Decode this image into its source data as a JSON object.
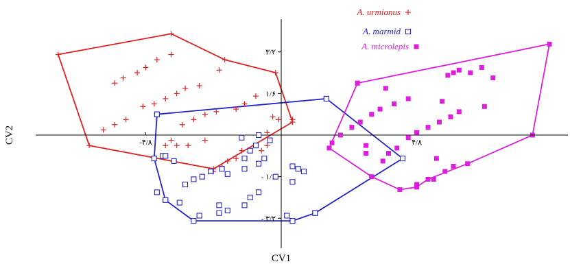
{
  "chart_data": {
    "type": "scatter",
    "xlabel": "CV1",
    "ylabel": "CV2",
    "grid": false,
    "legend_position": "top-center",
    "xlim": [
      -8.6,
      9.5
    ],
    "ylim": [
      -4.3,
      3.8
    ],
    "x_ticks": [
      {
        "value": -4.8,
        "label": "-۴/۸"
      },
      {
        "value": 4.8,
        "label": "۴/۸"
      }
    ],
    "y_ticks": [
      {
        "value": 3.2,
        "label": "۳/۲"
      },
      {
        "value": 1.6,
        "label": "۱/۶"
      },
      {
        "value": -1.6,
        "label": "- ۱/۶"
      },
      {
        "value": -3.2,
        "label": "- ۳/۲"
      }
    ],
    "series": [
      {
        "name": "A. urmianus",
        "marker": "plus",
        "color": "#e02020",
        "points": [
          [
            -3.9,
            3.1
          ],
          [
            -4.4,
            2.9
          ],
          [
            -4.8,
            2.6
          ],
          [
            -5.1,
            2.4
          ],
          [
            -5.6,
            2.2
          ],
          [
            -5.9,
            2.0
          ],
          [
            -2.2,
            2.5
          ],
          [
            -2.9,
            1.9
          ],
          [
            -3.4,
            1.8
          ],
          [
            -3.7,
            1.6
          ],
          [
            -4.1,
            1.4
          ],
          [
            -4.5,
            1.2
          ],
          [
            -4.9,
            1.1
          ],
          [
            -0.9,
            1.5
          ],
          [
            -1.3,
            1.2
          ],
          [
            -1.6,
            1.0
          ],
          [
            -2.3,
            0.9
          ],
          [
            -2.7,
            0.8
          ],
          [
            -3.1,
            0.6
          ],
          [
            -3.5,
            0.4
          ],
          [
            -5.5,
            0.6
          ],
          [
            -5.9,
            0.4
          ],
          [
            -6.3,
            0.2
          ],
          [
            -2.7,
            -0.2
          ],
          [
            -3.7,
            -0.4
          ],
          [
            -3.3,
            -0.4
          ],
          [
            -3.9,
            -0.2
          ],
          [
            -4.1,
            -0.4
          ],
          [
            -1.4,
            -0.6
          ],
          [
            -1.6,
            -0.9
          ],
          [
            -1.9,
            -1.0
          ],
          [
            -2.1,
            -1.2
          ],
          [
            -2.4,
            -1.4
          ],
          [
            -0.5,
            0.1
          ],
          [
            0.4,
            0.6
          ],
          [
            -0.5,
            -0.4
          ],
          [
            -0.7,
            -0.6
          ],
          [
            -0.1,
            0.6
          ],
          [
            -0.3,
            0.7
          ],
          [
            -4.1,
            -0.8
          ]
        ],
        "hull": [
          [
            -3.9,
            3.9
          ],
          [
            -7.9,
            3.1
          ],
          [
            -6.8,
            -0.4
          ],
          [
            -2.4,
            -1.3
          ],
          [
            0.4,
            0.5
          ],
          [
            -0.2,
            2.4
          ],
          [
            -2.0,
            2.9
          ]
        ]
      },
      {
        "name": "A. marmid",
        "marker": "square",
        "color": "#2323c8",
        "points": [
          [
            -4.2,
            -0.8
          ],
          [
            -3.8,
            -1.0
          ],
          [
            -3.4,
            -1.9
          ],
          [
            -3.1,
            -1.7
          ],
          [
            -2.8,
            -1.6
          ],
          [
            -2.5,
            -1.4
          ],
          [
            -2.1,
            -1.3
          ],
          [
            -1.9,
            -1.5
          ],
          [
            -1.3,
            -0.9
          ],
          [
            -1.1,
            -0.6
          ],
          [
            -0.9,
            -0.4
          ],
          [
            -0.4,
            -0.2
          ],
          [
            -0.6,
            -0.9
          ],
          [
            -0.8,
            -1.1
          ],
          [
            0.4,
            -1.2
          ],
          [
            0.6,
            -1.3
          ],
          [
            0.8,
            -1.4
          ],
          [
            -0.2,
            -1.6
          ],
          [
            0.4,
            -1.8
          ],
          [
            -0.8,
            -2.2
          ],
          [
            -1.1,
            -2.4
          ],
          [
            -1.3,
            -2.7
          ],
          [
            -1.9,
            -2.9
          ],
          [
            -2.2,
            -3.0
          ],
          [
            -2.9,
            -3.1
          ],
          [
            -3.6,
            -2.6
          ],
          [
            -2.2,
            -2.7
          ],
          [
            0.2,
            -3.1
          ],
          [
            0.4,
            -3.3
          ],
          [
            1.2,
            -3.0
          ],
          [
            -4.1,
            -2.5
          ],
          [
            -4.4,
            -2.2
          ],
          [
            -4.4,
            0.8
          ],
          [
            1.6,
            1.4
          ],
          [
            -0.8,
            0.0
          ],
          [
            -1.4,
            -0.1
          ],
          [
            -4.1,
            -0.8
          ],
          [
            -1.3,
            -1.3
          ]
        ],
        "hull": [
          [
            -4.4,
            0.8
          ],
          [
            -4.5,
            -0.9
          ],
          [
            -4.1,
            -2.5
          ],
          [
            -3.1,
            -3.3
          ],
          [
            0.4,
            -3.3
          ],
          [
            1.2,
            -3.0
          ],
          [
            4.3,
            -0.9
          ],
          [
            1.6,
            1.4
          ]
        ]
      },
      {
        "name": "A. microlepis",
        "marker": "filled-square",
        "color": "#dd1fdd",
        "points": [
          [
            7.1,
            2.6
          ],
          [
            6.7,
            2.4
          ],
          [
            6.3,
            2.5
          ],
          [
            6.1,
            2.4
          ],
          [
            5.9,
            2.3
          ],
          [
            7.5,
            2.2
          ],
          [
            2.7,
            2.0
          ],
          [
            3.7,
            1.8
          ],
          [
            4.5,
            1.4
          ],
          [
            4.0,
            1.2
          ],
          [
            3.5,
            1.0
          ],
          [
            3.2,
            0.8
          ],
          [
            2.8,
            0.5
          ],
          [
            2.5,
            0.3
          ],
          [
            2.1,
            0.0
          ],
          [
            1.8,
            -0.3
          ],
          [
            5.7,
            1.3
          ],
          [
            7.2,
            1.1
          ],
          [
            6.3,
            0.9
          ],
          [
            6.0,
            0.7
          ],
          [
            5.6,
            0.5
          ],
          [
            5.2,
            0.3
          ],
          [
            4.8,
            0.1
          ],
          [
            4.5,
            -0.1
          ],
          [
            4.1,
            -0.5
          ],
          [
            3.8,
            -0.7
          ],
          [
            5.5,
            -0.9
          ],
          [
            6.1,
            -1.2
          ],
          [
            5.8,
            -1.4
          ],
          [
            5.4,
            -1.7
          ],
          [
            4.8,
            -1.9
          ],
          [
            3.6,
            -1.0
          ],
          [
            3.0,
            -0.4
          ],
          [
            3.0,
            -0.7
          ]
        ],
        "hull": [
          [
            2.7,
            2.0
          ],
          [
            9.5,
            3.5
          ],
          [
            8.9,
            0.0
          ],
          [
            6.6,
            -1.1
          ],
          [
            5.2,
            -1.7
          ],
          [
            4.8,
            -2.0
          ],
          [
            4.2,
            -2.1
          ],
          [
            3.2,
            -1.6
          ],
          [
            1.7,
            -0.5
          ]
        ]
      }
    ]
  }
}
